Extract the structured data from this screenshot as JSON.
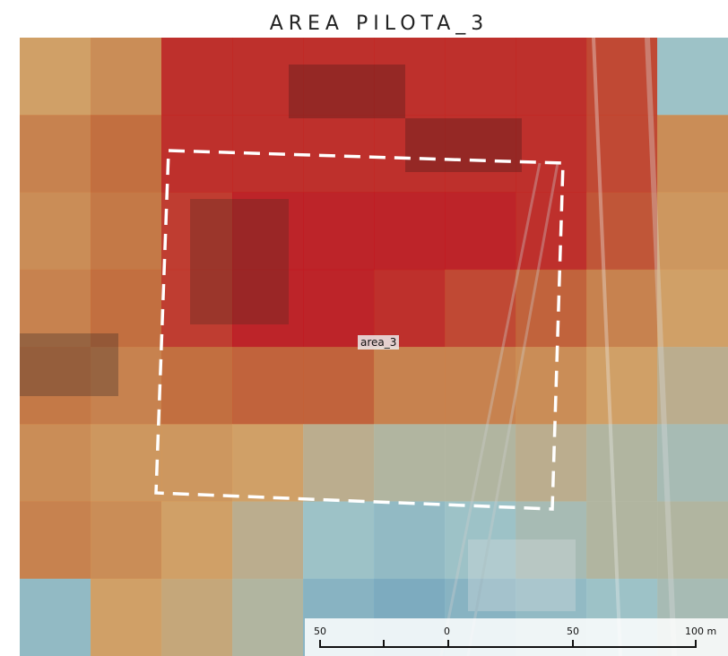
{
  "title": "AREA PILOTA_3",
  "area_label": "area_3",
  "scale_bar": {
    "labels": [
      "50",
      "0",
      "50",
      "100 m"
    ]
  },
  "colors": {
    "hot": "#c4141b",
    "warm": "#c96a35",
    "mild": "#d9a262",
    "cool": "#9fc8cf",
    "cold": "#6fa5c3",
    "boundary": "#ffffff"
  },
  "heat_levels": [
    [
      0.45,
      0.55,
      0.95,
      0.95,
      0.95,
      0.95,
      0.95,
      0.95,
      0.85,
      0.2
    ],
    [
      0.6,
      0.7,
      0.95,
      0.95,
      0.95,
      0.95,
      0.95,
      0.95,
      0.85,
      0.55
    ],
    [
      0.55,
      0.65,
      0.9,
      1.0,
      1.0,
      1.0,
      1.0,
      0.95,
      0.8,
      0.5
    ],
    [
      0.6,
      0.7,
      0.9,
      1.0,
      1.0,
      0.95,
      0.85,
      0.75,
      0.6,
      0.45
    ],
    [
      0.65,
      0.6,
      0.7,
      0.75,
      0.75,
      0.6,
      0.6,
      0.55,
      0.45,
      0.35
    ],
    [
      0.55,
      0.5,
      0.5,
      0.45,
      0.35,
      0.3,
      0.3,
      0.35,
      0.3,
      0.25
    ],
    [
      0.6,
      0.55,
      0.45,
      0.35,
      0.2,
      0.15,
      0.2,
      0.25,
      0.3,
      0.3
    ],
    [
      0.15,
      0.45,
      0.4,
      0.3,
      0.1,
      0.05,
      0.1,
      0.15,
      0.2,
      0.25
    ]
  ]
}
